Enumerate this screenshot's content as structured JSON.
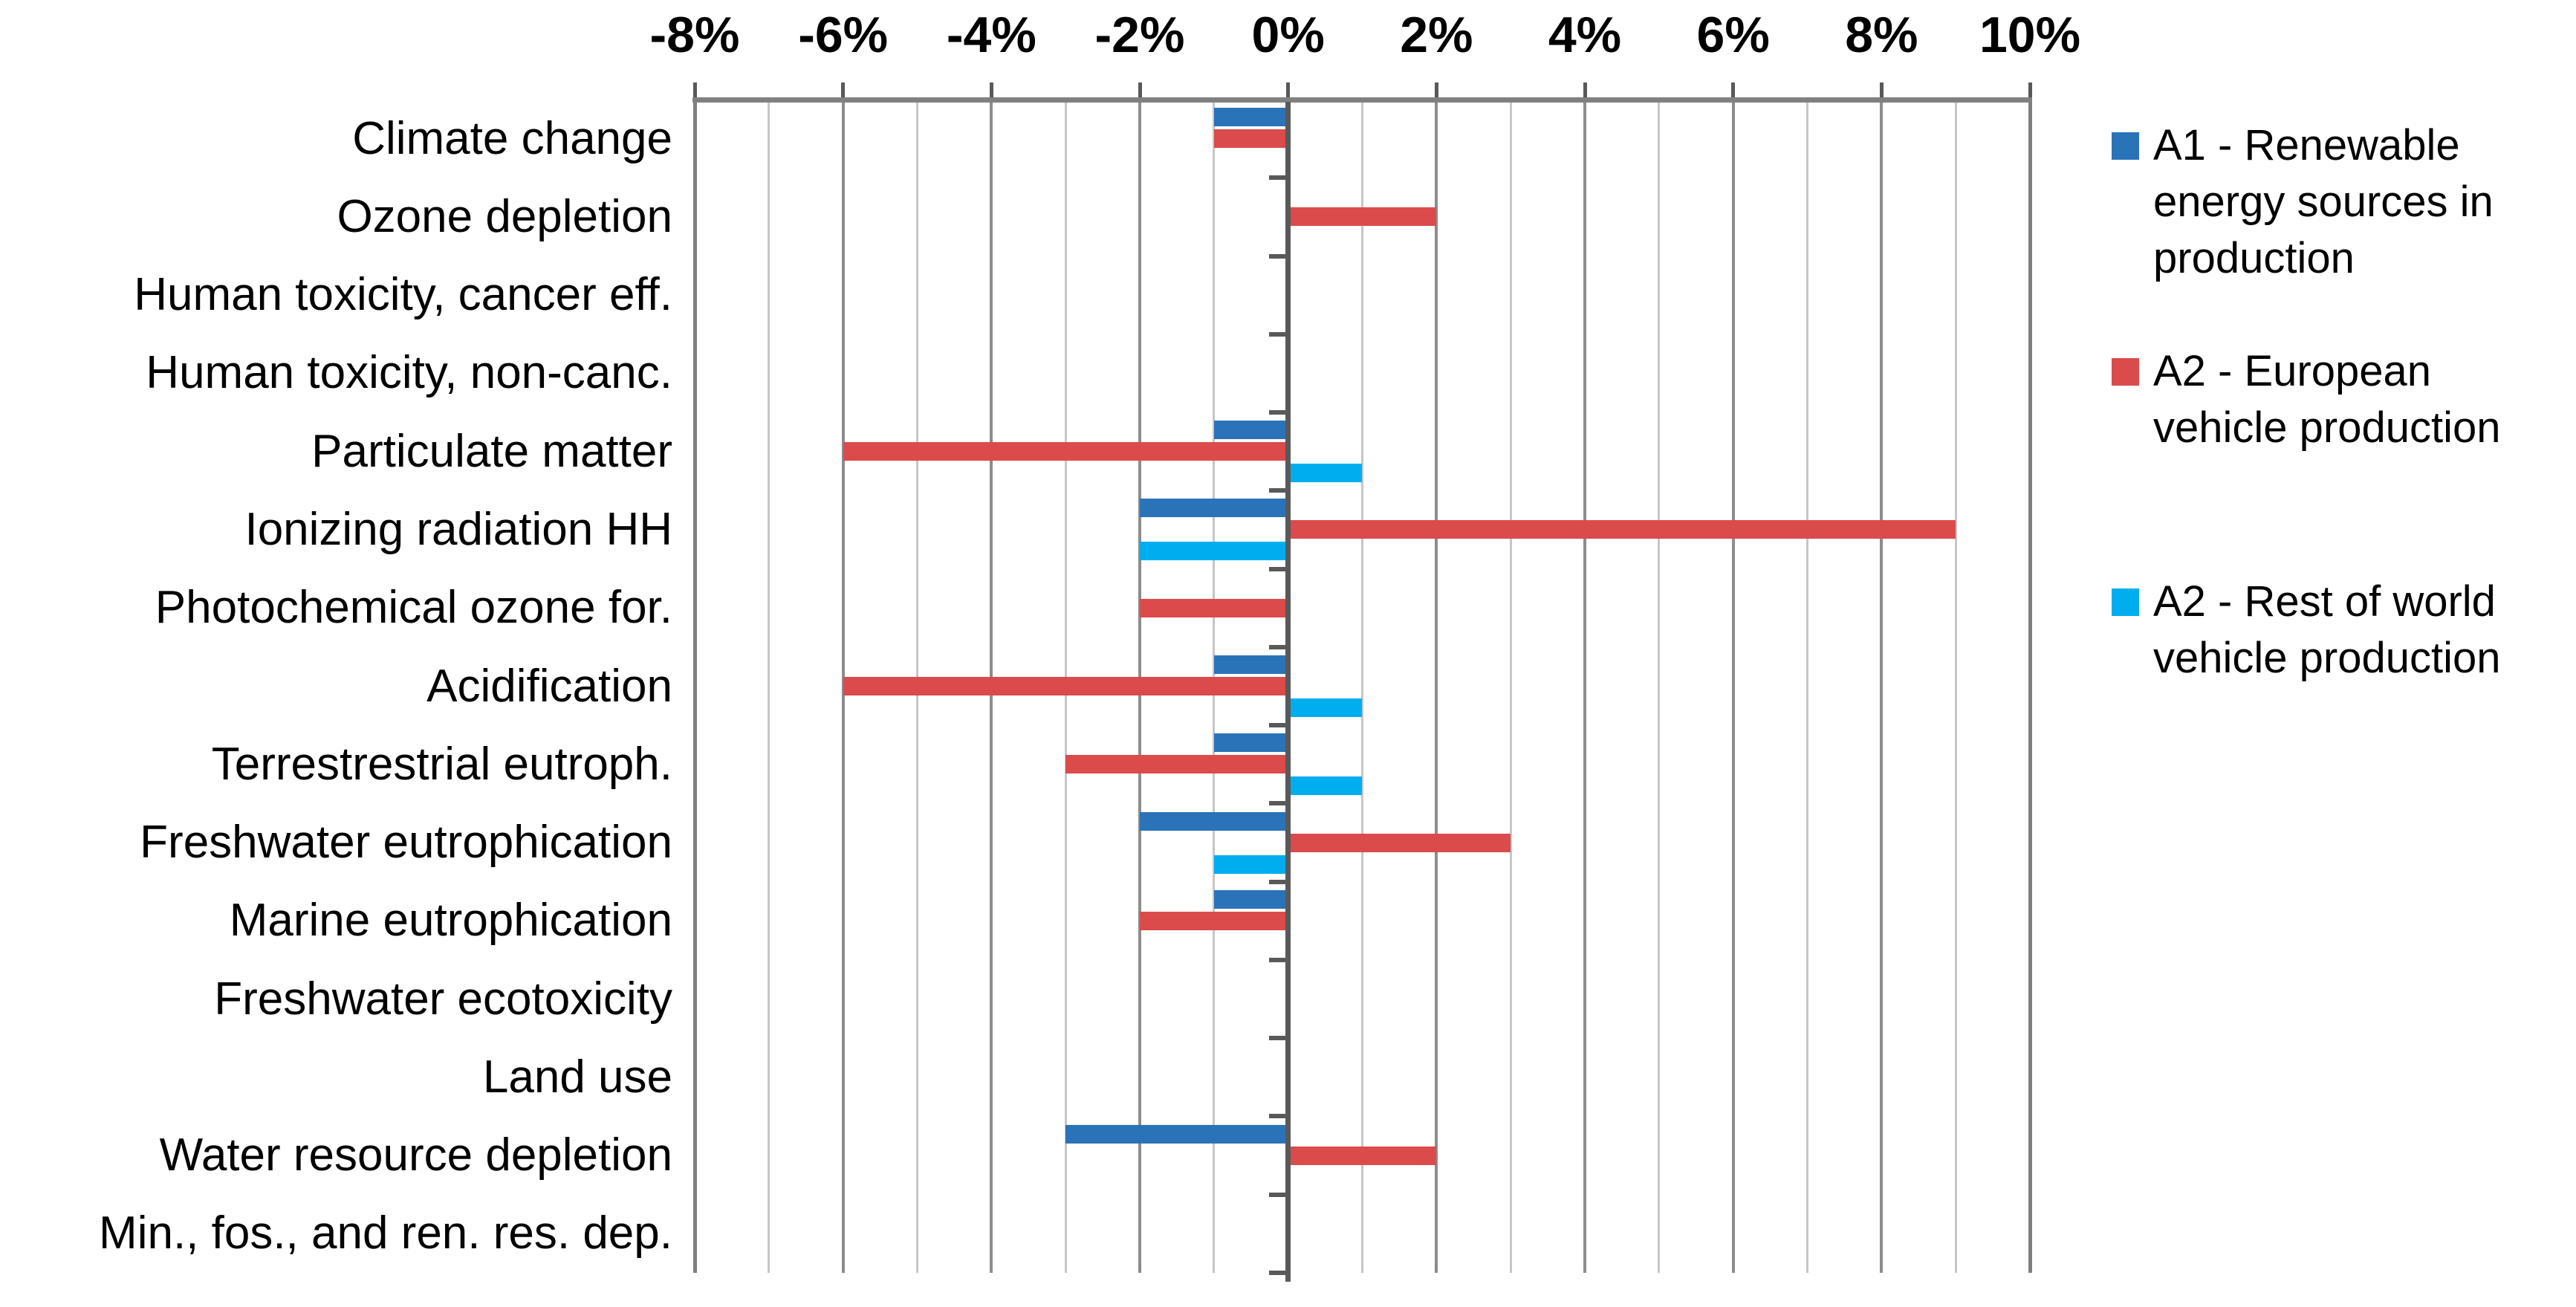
{
  "chart_data": {
    "type": "bar",
    "orientation": "horizontal",
    "title": "",
    "x_axis": {
      "unit": "%",
      "min": -8,
      "max": 10,
      "major_step": 2,
      "minor_step": 1,
      "ticks": [
        "-8%",
        "-6%",
        "-4%",
        "-2%",
        "0%",
        "2%",
        "4%",
        "6%",
        "8%",
        "10%"
      ]
    },
    "grid": {
      "show": true,
      "minor_color": "#c6c6c6",
      "major_color": "#8c8c8c",
      "border_color": "#7f7f7f",
      "zero_axis_color": "#595959",
      "top_axis_line_color": "#808080"
    },
    "categories": [
      "Climate change",
      "Ozone depletion",
      "Human toxicity, cancer eff.",
      "Human toxicity, non-canc.",
      "Particulate matter",
      "Ionizing radiation HH",
      "Photochemical ozone for.",
      "Acidification",
      "Terrestrestrial eutroph.",
      "Freshwater eutrophication",
      "Marine eutrophication",
      "Freshwater ecotoxicity",
      "Land use",
      "Water resource depletion",
      "Min., fos., and ren. res. dep."
    ],
    "series": [
      {
        "name": "A1 - Renewable energy sources in production",
        "color": "#2b73b8",
        "values": [
          -1,
          0,
          0,
          0,
          -1,
          -2,
          0,
          -1,
          -1,
          -2,
          -1,
          0,
          0,
          -3,
          0
        ]
      },
      {
        "name": "A2 - European vehicle production",
        "color": "#db4b4b",
        "values": [
          -1,
          2,
          0,
          0,
          -6,
          9,
          -2,
          -6,
          -3,
          3,
          -2,
          0,
          0,
          2,
          0
        ]
      },
      {
        "name": "A2 - Rest of world vehicle production",
        "color": "#00aeef",
        "values": [
          0,
          0,
          0,
          0,
          1,
          -2,
          0,
          1,
          1,
          -1,
          0,
          0,
          0,
          0,
          0
        ]
      }
    ],
    "legend": {
      "position": "right",
      "items": [
        {
          "color": "#2b73b8",
          "lines": [
            "A1 -  Renewable",
            "energy sources in",
            "production"
          ]
        },
        {
          "color": "#db4b4b",
          "lines": [
            "A2 -  European",
            "vehicle production",
            ""
          ]
        },
        {
          "color": "#00aeef",
          "lines": [
            "A2 -  Rest of world",
            "vehicle production",
            ""
          ]
        }
      ]
    }
  }
}
